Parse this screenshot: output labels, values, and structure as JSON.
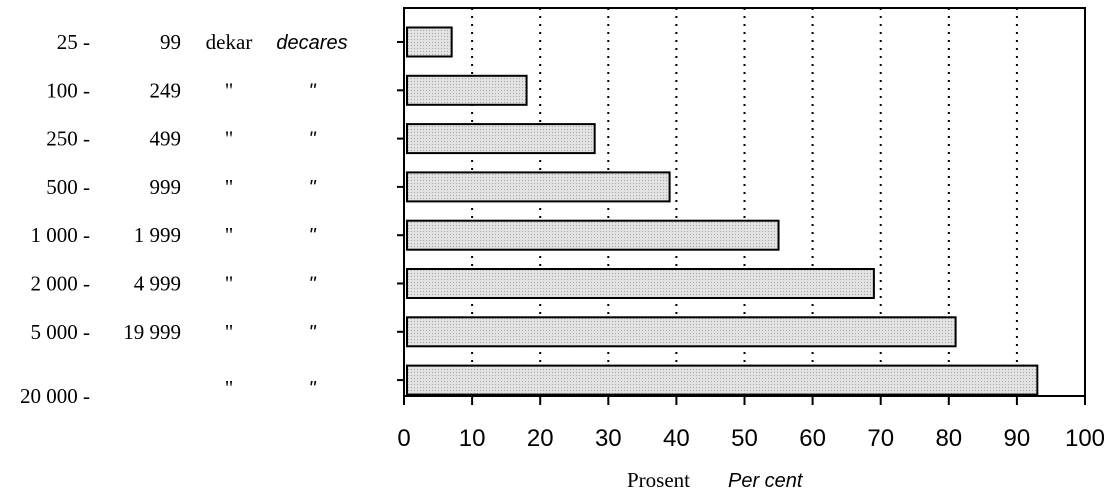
{
  "chart_data": {
    "type": "bar",
    "orientation": "horizontal",
    "categories": [
      {
        "from": "25 -",
        "to": "99",
        "unit_no": "dekar",
        "unit_en": "decares"
      },
      {
        "from": "100 -",
        "to": "249",
        "unit_no": "\"",
        "unit_en": "\""
      },
      {
        "from": "250 -",
        "to": "499",
        "unit_no": "\"",
        "unit_en": "\""
      },
      {
        "from": "500 -",
        "to": "999",
        "unit_no": "\"",
        "unit_en": "\""
      },
      {
        "from": "1 000 -",
        "to": "1 999",
        "unit_no": "\"",
        "unit_en": "\""
      },
      {
        "from": "2 000 -",
        "to": "4 999",
        "unit_no": "\"",
        "unit_en": "\""
      },
      {
        "from": "5 000 -",
        "to": "19 999",
        "unit_no": "\"",
        "unit_en": "\""
      },
      {
        "from": "20 000 -",
        "to": "",
        "unit_no": "\"",
        "unit_en": "\""
      }
    ],
    "values": [
      7,
      18,
      28,
      39,
      55,
      69,
      81,
      93
    ],
    "xlim": [
      0,
      100
    ],
    "xticks": [
      "0",
      "10",
      "20",
      "30",
      "40",
      "50",
      "60",
      "70",
      "80",
      "90",
      "100"
    ],
    "grid": "vertical dotted",
    "xlabel_no": "Prosent",
    "xlabel_en": "Per cent",
    "colors": {
      "bar_fill": "#e4e4e4",
      "bar_stroke": "#000000",
      "grid": "#000000"
    }
  }
}
